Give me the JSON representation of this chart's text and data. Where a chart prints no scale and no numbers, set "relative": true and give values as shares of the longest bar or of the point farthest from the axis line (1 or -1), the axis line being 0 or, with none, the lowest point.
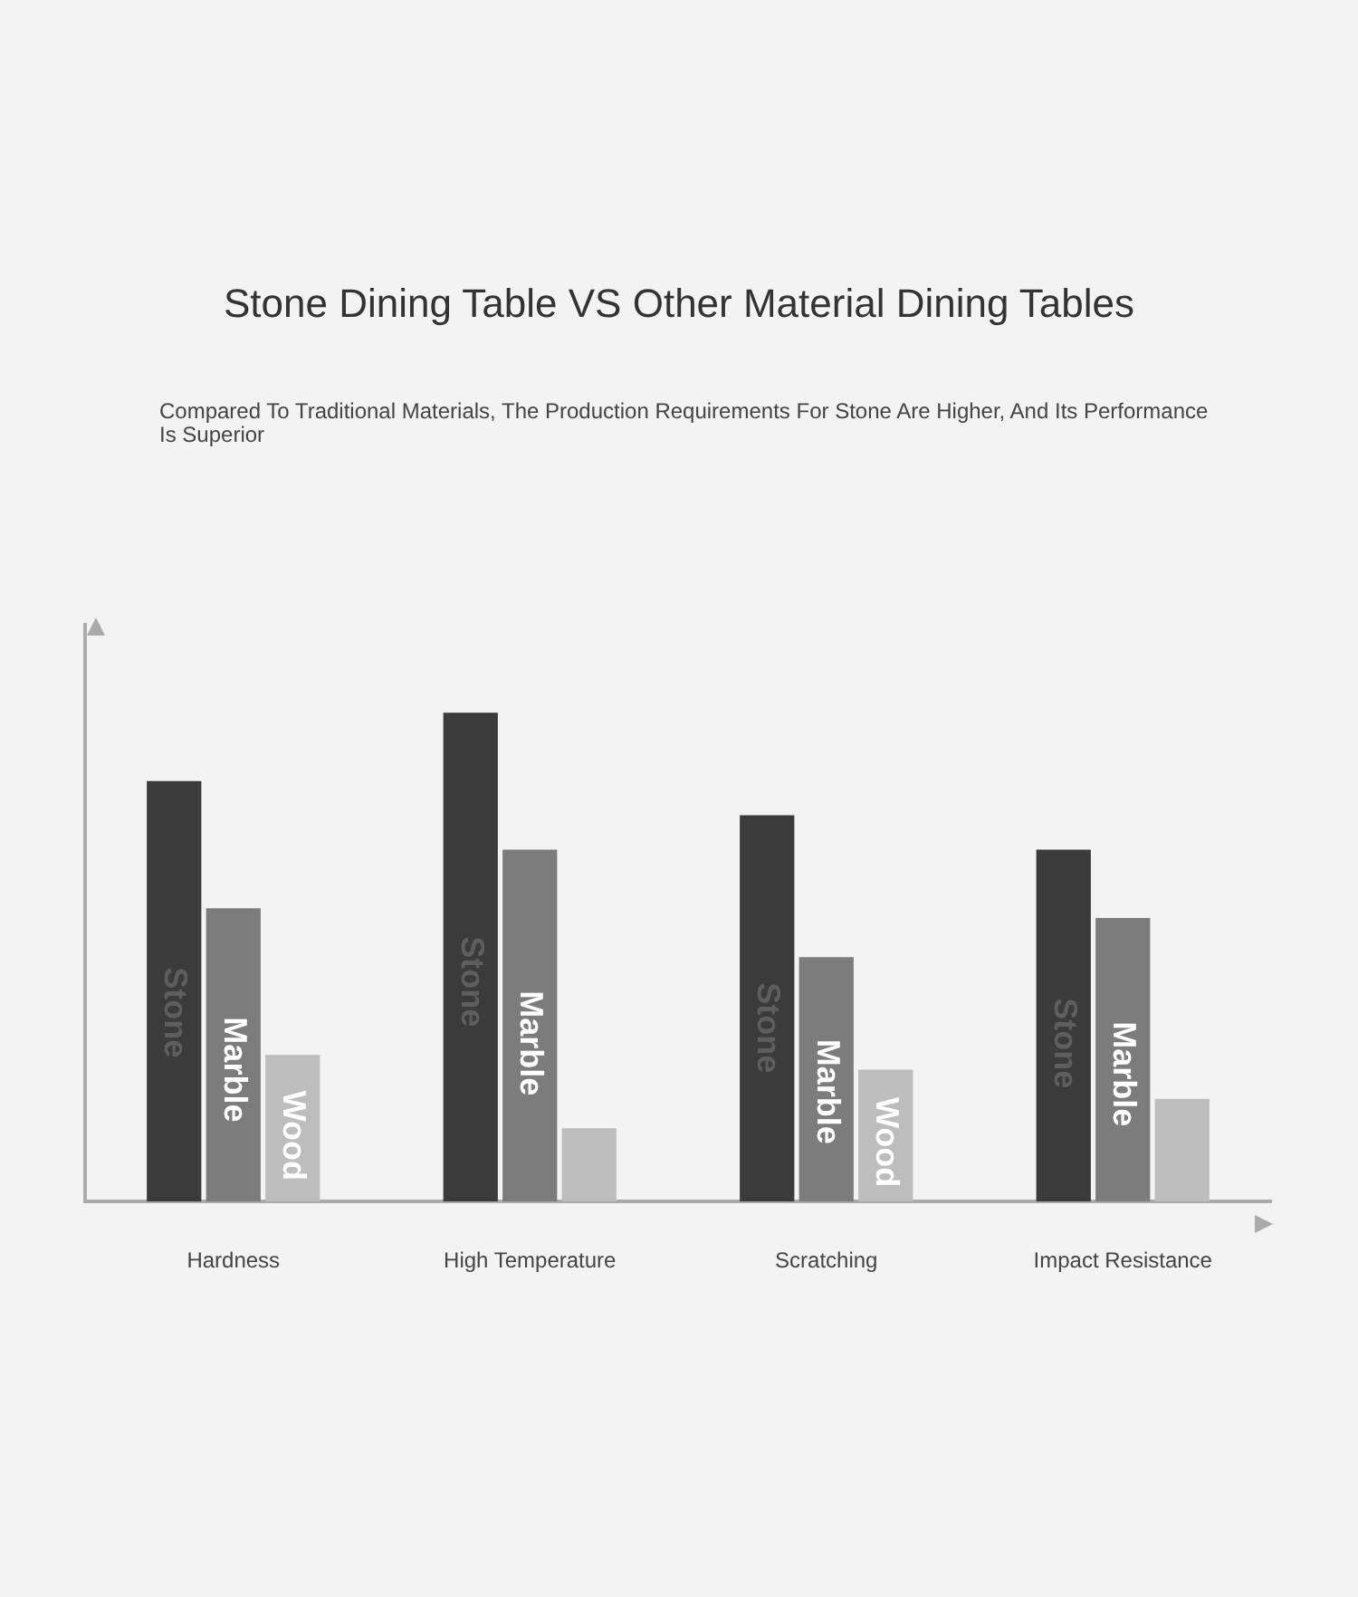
{
  "chart_data": {
    "type": "bar",
    "title": "Stone Dining Table VS Other Material Dining Tables",
    "subtitle": "Compared To Traditional Materials, The Production Requirements For Stone Are Higher, And Its Performance Is Superior",
    "categories": [
      "Hardness",
      "High Temperature",
      "Scratching",
      "Impact Resistance"
    ],
    "relative": true,
    "legend": false,
    "grid": false,
    "series": [
      {
        "name": "Stone",
        "color": "#3b3b3b",
        "values": [
          0.86,
          1,
          0.79,
          0.72
        ]
      },
      {
        "name": "Marble",
        "color": "#7c7c7c",
        "values": [
          0.6,
          0.72,
          0.5,
          0.58
        ]
      },
      {
        "name": "Wood",
        "color": "#bdbdbd",
        "values": [
          0.3,
          0.15,
          0.27,
          0.21
        ]
      }
    ]
  }
}
